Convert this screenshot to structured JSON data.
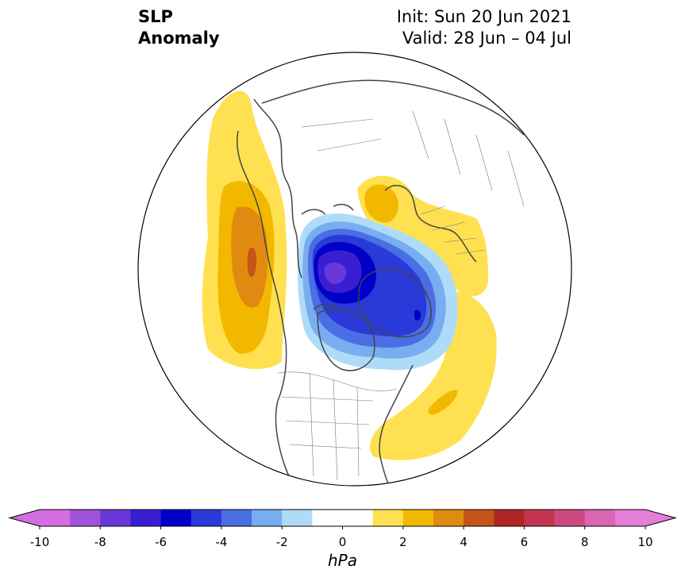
{
  "title": {
    "line1": "SLP",
    "line2": "Anomaly"
  },
  "subtitle": {
    "line1": "Init: Sun 20 Jun 2021",
    "line2": "Valid: 28 Jun – 04 Jul"
  },
  "colorbar": {
    "unit": "hPa",
    "ticks": [
      "-10",
      "-8",
      "-6",
      "-4",
      "-2",
      "0",
      "2",
      "4",
      "6",
      "8",
      "10"
    ],
    "levels": [
      -10,
      -9,
      -8,
      -7,
      -6,
      -5,
      -4,
      -3,
      -2,
      -1,
      1,
      2,
      3,
      4,
      5,
      6,
      7,
      8,
      9,
      10
    ],
    "colors": [
      "#d36ee0",
      "#a052dc",
      "#6a38d8",
      "#3a1ed2",
      "#0000c8",
      "#2a3ad8",
      "#4a6ee4",
      "#78aef0",
      "#aedcf8",
      "#ffffff",
      "#ffe050",
      "#f2b800",
      "#e08a10",
      "#c45418",
      "#b02626",
      "#c43450",
      "#cc4a80",
      "#d866b0",
      "#e47ed8"
    ],
    "under_color": "#d36ee0",
    "over_color": "#e47ed8"
  }
}
